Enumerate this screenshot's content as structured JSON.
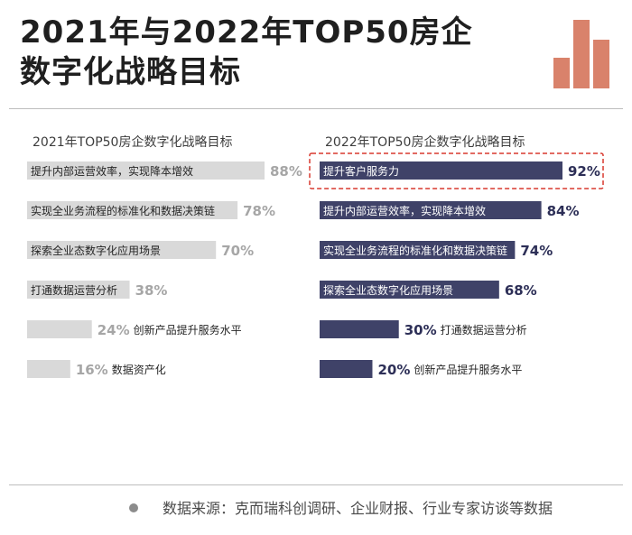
{
  "header": {
    "title_line1": "2021年与2022年TOP50房企",
    "title_line2": "数字化战略目标"
  },
  "colors": {
    "bar_2021": "#d9d9d9",
    "bar_2022": "#3f4268",
    "pct_2021": "#a6a6a6",
    "pct_2022": "#2d2f57",
    "label_text": "#262626",
    "highlight": "#d8382f",
    "logo": "#d9826b"
  },
  "chart_data": [
    {
      "type": "bar",
      "orientation": "horizontal",
      "title": "2021年TOP50房企数字化战略目标",
      "categories": [
        "提升内部运营效率，实现降本增效",
        "实现全业务流程的标准化和数据决策链",
        "探索全业态数字化应用场景",
        "打通数据运营分析",
        "创新产品提升服务水平",
        "数据资产化"
      ],
      "values": [
        88,
        78,
        70,
        38,
        24,
        16
      ],
      "value_labels": [
        "88%",
        "78%",
        "70%",
        "38%",
        "24%",
        "16%"
      ],
      "unit": "%",
      "xlim": [
        0,
        100
      ]
    },
    {
      "type": "bar",
      "orientation": "horizontal",
      "title": "2022年TOP50房企数字化战略目标",
      "categories": [
        "提升客户服务力",
        "提升内部运营效率，实现降本增效",
        "实现全业务流程的标准化和数据决策链",
        "探索全业态数字化应用场景",
        "打通数据运营分析",
        "创新产品提升服务水平"
      ],
      "values": [
        92,
        84,
        74,
        68,
        30,
        20
      ],
      "value_labels": [
        "92%",
        "84%",
        "74%",
        "68%",
        "30%",
        "20%"
      ],
      "unit": "%",
      "xlim": [
        0,
        100
      ],
      "highlighted_category": "提升客户服务力"
    }
  ],
  "footer": {
    "source": "数据来源：克而瑞科创调研、企业财报、行业专家访谈等数据"
  }
}
